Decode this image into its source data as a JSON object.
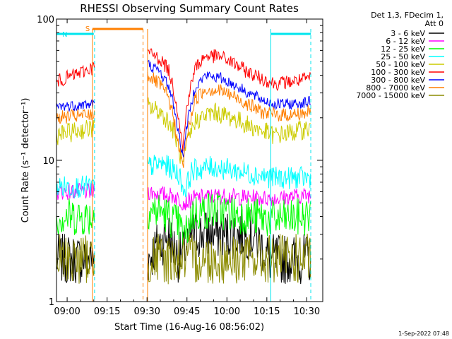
{
  "chart_data": {
    "type": "line",
    "title": "RHESSI Observing Summary Count Rates",
    "xlabel": "Start Time (16-Aug-16 08:56:02)",
    "ylabel": "Count Rate (s⁻¹ detector⁻¹)",
    "yscale": "log",
    "ylim": [
      1,
      100
    ],
    "y_ticks": [
      "1",
      "10",
      "100"
    ],
    "x_ticks": [
      "09:00",
      "09:15",
      "09:30",
      "09:45",
      "10:00",
      "10:15",
      "10:30"
    ],
    "x_tick_minutes": [
      0,
      15,
      30,
      45,
      60,
      75,
      90
    ],
    "xlim_minutes": [
      -4,
      96
    ],
    "legend_header": [
      "Det 1,3, FDecim 1,",
      "Att 0"
    ],
    "legend_position": "top-right",
    "timestamp": "1-Sep-2022 07:48",
    "flag_labels": {
      "saa": "S",
      "night": "N"
    },
    "flag_bars": [
      {
        "label_key": "night",
        "color": "#00e5ee",
        "start": -4,
        "end": 10
      },
      {
        "label_key": "saa",
        "color": "#ff7f00",
        "start": 9.5,
        "end": 28.5
      },
      {
        "label_key": "",
        "color": "#00e5ee",
        "start": 76.5,
        "end": 91.5
      }
    ],
    "event_lines": [
      {
        "minute": 9.5,
        "color": "#ff7f00",
        "dash": false
      },
      {
        "minute": 10.3,
        "color": "#00e5ee",
        "dash": true
      },
      {
        "minute": 28.5,
        "color": "#ff7f00",
        "dash": true
      },
      {
        "minute": 30.2,
        "color": "#ff7f00",
        "dash": false
      },
      {
        "minute": 76.5,
        "color": "#00e5ee",
        "dash": false
      },
      {
        "minute": 91.5,
        "color": "#00e5ee",
        "dash": true
      }
    ],
    "series": [
      {
        "name": "3 - 6 keV",
        "color": "#000000",
        "noise": 0.18,
        "points": [
          [
            -4,
            2
          ],
          [
            9.5,
            2
          ],
          [
            30.5,
            2
          ],
          [
            34,
            2.5
          ],
          [
            38,
            3
          ],
          [
            42,
            2
          ],
          [
            47,
            3
          ],
          [
            55,
            3
          ],
          [
            62,
            3
          ],
          [
            70,
            3
          ],
          [
            76,
            2
          ],
          [
            91.5,
            2
          ]
        ]
      },
      {
        "name": "6 - 12 keV",
        "color": "#ff00ff",
        "noise": 0.06,
        "points": [
          [
            -4,
            6
          ],
          [
            9.5,
            6
          ],
          [
            30.5,
            6
          ],
          [
            34,
            5.8
          ],
          [
            40,
            5.6
          ],
          [
            44,
            5
          ],
          [
            48,
            5.4
          ],
          [
            56,
            5.6
          ],
          [
            64,
            5.5
          ],
          [
            72,
            5.4
          ],
          [
            80,
            5.4
          ],
          [
            91.5,
            5.7
          ]
        ]
      },
      {
        "name": "12 - 25 keV",
        "color": "#00ff00",
        "noise": 0.14,
        "points": [
          [
            -4,
            4
          ],
          [
            9.5,
            4
          ],
          [
            30.5,
            4.5
          ],
          [
            36,
            4.3
          ],
          [
            42,
            3.5
          ],
          [
            44,
            2.8
          ],
          [
            47,
            4.2
          ],
          [
            55,
            4.5
          ],
          [
            62,
            4.2
          ],
          [
            70,
            4
          ],
          [
            78,
            3.8
          ],
          [
            91.5,
            4
          ]
        ]
      },
      {
        "name": "25 - 50 keV",
        "color": "#00ffff",
        "noise": 0.08,
        "points": [
          [
            -4,
            6.5
          ],
          [
            9.5,
            6.5
          ],
          [
            30.5,
            9
          ],
          [
            36,
            9.5
          ],
          [
            42,
            8
          ],
          [
            44,
            6
          ],
          [
            47,
            8.5
          ],
          [
            55,
            9
          ],
          [
            62,
            8.5
          ],
          [
            70,
            8
          ],
          [
            78,
            7.5
          ],
          [
            91.5,
            7.5
          ]
        ]
      },
      {
        "name": "50 - 100 keV",
        "color": "#cccc00",
        "noise": 0.07,
        "points": [
          [
            -4,
            15
          ],
          [
            9.5,
            17
          ],
          [
            30.5,
            24
          ],
          [
            35,
            22
          ],
          [
            38,
            19
          ],
          [
            40,
            16
          ],
          [
            42,
            12
          ],
          [
            43.5,
            9
          ],
          [
            45,
            13
          ],
          [
            48,
            19
          ],
          [
            55,
            22
          ],
          [
            62,
            20
          ],
          [
            70,
            17
          ],
          [
            78,
            15
          ],
          [
            86,
            16
          ],
          [
            91.5,
            17
          ]
        ]
      },
      {
        "name": "100 - 300 keV",
        "color": "#ff0000",
        "noise": 0.05,
        "points": [
          [
            -4,
            36
          ],
          [
            9.5,
            45
          ],
          [
            30.5,
            58
          ],
          [
            35,
            52
          ],
          [
            38,
            44
          ],
          [
            40,
            32
          ],
          [
            42,
            20
          ],
          [
            43.5,
            12
          ],
          [
            45,
            25
          ],
          [
            48,
            45
          ],
          [
            52,
            55
          ],
          [
            58,
            54
          ],
          [
            63,
            48
          ],
          [
            68,
            42
          ],
          [
            73,
            38
          ],
          [
            78,
            35
          ],
          [
            84,
            36
          ],
          [
            91.5,
            38
          ]
        ]
      },
      {
        "name": "300 - 800 keV",
        "color": "#0000ff",
        "noise": 0.04,
        "points": [
          [
            -4,
            24
          ],
          [
            9.5,
            25
          ],
          [
            30.5,
            48
          ],
          [
            35,
            42
          ],
          [
            38,
            34
          ],
          [
            40,
            25
          ],
          [
            42,
            15
          ],
          [
            43.5,
            10.5
          ],
          [
            45,
            18
          ],
          [
            48,
            33
          ],
          [
            52,
            40
          ],
          [
            58,
            38
          ],
          [
            63,
            34
          ],
          [
            68,
            30
          ],
          [
            73,
            27
          ],
          [
            78,
            25
          ],
          [
            84,
            25
          ],
          [
            91.5,
            26
          ]
        ]
      },
      {
        "name": "800 - 7000 keV",
        "color": "#ff7f00",
        "noise": 0.05,
        "points": [
          [
            -4,
            20
          ],
          [
            9.5,
            21
          ],
          [
            30.5,
            40
          ],
          [
            35,
            34
          ],
          [
            38,
            28
          ],
          [
            40,
            20
          ],
          [
            42,
            12
          ],
          [
            43.5,
            9
          ],
          [
            45,
            15
          ],
          [
            48,
            27
          ],
          [
            52,
            32
          ],
          [
            58,
            31
          ],
          [
            63,
            28
          ],
          [
            68,
            25
          ],
          [
            73,
            22
          ],
          [
            78,
            21
          ],
          [
            84,
            21
          ],
          [
            91.5,
            22
          ]
        ]
      },
      {
        "name": "7000 - 15000 keV",
        "color": "#8b8b00",
        "noise": 0.18,
        "points": [
          [
            -4,
            2
          ],
          [
            9.5,
            2
          ],
          [
            91.5,
            2
          ]
        ]
      }
    ]
  }
}
